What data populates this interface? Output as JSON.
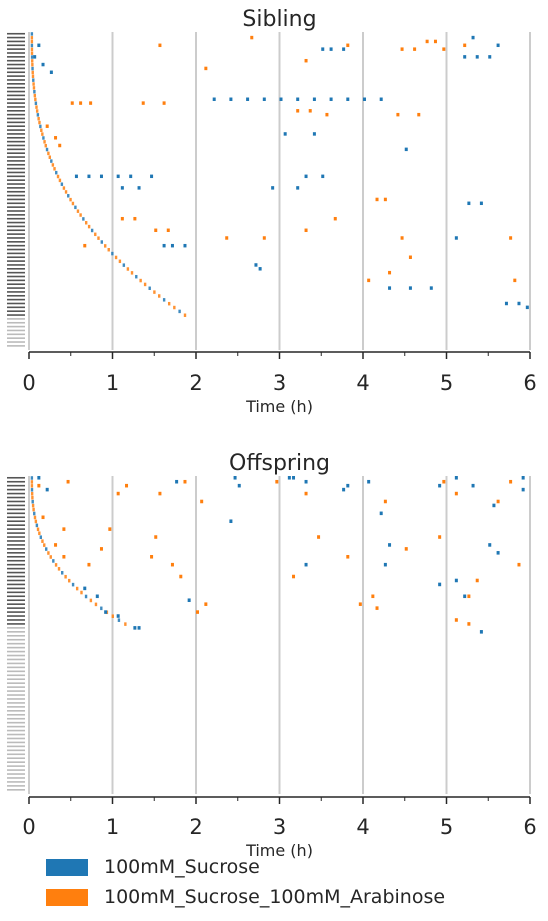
{
  "colors": {
    "sucrose": "#1f77b4",
    "arabinose": "#ff7f0e",
    "gridline": "#cccccc",
    "axis": "#262626"
  },
  "legend": {
    "items": [
      {
        "label": "100mM_Sucrose",
        "color_key": "sucrose"
      },
      {
        "label": "100mM_Sucrose_100mM_Arabinose",
        "color_key": "arabinose"
      }
    ]
  },
  "chart_data": [
    {
      "type": "event-raster",
      "title": "Sibling",
      "xlabel": "Time (h)",
      "xlim": [
        0,
        6
      ],
      "xticks": [
        "0",
        "1",
        "2",
        "3",
        "4",
        "5",
        "6"
      ],
      "vertical_grid_at": [
        0,
        1,
        2,
        3,
        4,
        5,
        6
      ],
      "row_count": 82,
      "active_rows": 74,
      "series": [
        {
          "name": "100mM_Sucrose",
          "color_key": "sucrose",
          "events": [
            {
              "row": 3,
              "t": 0.1
            },
            {
              "row": 6,
              "t": 0.05
            },
            {
              "row": 8,
              "t": 0.15
            },
            {
              "row": 10,
              "t": 0.25
            },
            {
              "row": 4,
              "t": 3.5
            },
            {
              "row": 4,
              "t": 3.6
            },
            {
              "row": 4,
              "t": 3.75
            },
            {
              "row": 6,
              "t": 5.2
            },
            {
              "row": 6,
              "t": 5.35
            },
            {
              "row": 6,
              "t": 5.5
            },
            {
              "row": 1,
              "t": 5.3
            },
            {
              "row": 3,
              "t": 5.6
            },
            {
              "row": 17,
              "t": 2.2
            },
            {
              "row": 17,
              "t": 2.4
            },
            {
              "row": 17,
              "t": 2.6
            },
            {
              "row": 17,
              "t": 2.8
            },
            {
              "row": 17,
              "t": 3.0
            },
            {
              "row": 17,
              "t": 3.2
            },
            {
              "row": 17,
              "t": 3.4
            },
            {
              "row": 17,
              "t": 3.6
            },
            {
              "row": 17,
              "t": 3.8
            },
            {
              "row": 17,
              "t": 4.0
            },
            {
              "row": 17,
              "t": 4.2
            },
            {
              "row": 26,
              "t": 3.05
            },
            {
              "row": 26,
              "t": 3.4
            },
            {
              "row": 30,
              "t": 4.5
            },
            {
              "row": 37,
              "t": 0.55
            },
            {
              "row": 37,
              "t": 0.7
            },
            {
              "row": 37,
              "t": 0.85
            },
            {
              "row": 37,
              "t": 1.05
            },
            {
              "row": 37,
              "t": 1.2
            },
            {
              "row": 37,
              "t": 1.45
            },
            {
              "row": 37,
              "t": 3.3
            },
            {
              "row": 37,
              "t": 3.5
            },
            {
              "row": 40,
              "t": 1.1
            },
            {
              "row": 40,
              "t": 1.3
            },
            {
              "row": 40,
              "t": 2.9
            },
            {
              "row": 40,
              "t": 3.2
            },
            {
              "row": 44,
              "t": 5.25
            },
            {
              "row": 44,
              "t": 5.4
            },
            {
              "row": 53,
              "t": 5.1
            },
            {
              "row": 55,
              "t": 1.6
            },
            {
              "row": 55,
              "t": 1.7
            },
            {
              "row": 55,
              "t": 1.85
            },
            {
              "row": 60,
              "t": 2.7
            },
            {
              "row": 61,
              "t": 2.75
            },
            {
              "row": 66,
              "t": 4.3
            },
            {
              "row": 66,
              "t": 4.55
            },
            {
              "row": 66,
              "t": 4.8
            },
            {
              "row": 70,
              "t": 5.7
            },
            {
              "row": 70,
              "t": 5.85
            },
            {
              "row": 71,
              "t": 5.95
            }
          ]
        },
        {
          "name": "100mM_Sucrose_100mM_Arabinose",
          "color_key": "arabinose",
          "events": [
            {
              "row": 1,
              "t": 2.65
            },
            {
              "row": 2,
              "t": 4.75
            },
            {
              "row": 2,
              "t": 4.85
            },
            {
              "row": 3,
              "t": 1.55
            },
            {
              "row": 3,
              "t": 3.8
            },
            {
              "row": 3,
              "t": 5.2
            },
            {
              "row": 4,
              "t": 4.45
            },
            {
              "row": 4,
              "t": 4.6
            },
            {
              "row": 4,
              "t": 4.95
            },
            {
              "row": 7,
              "t": 3.3
            },
            {
              "row": 9,
              "t": 2.1
            },
            {
              "row": 18,
              "t": 0.5
            },
            {
              "row": 18,
              "t": 0.6
            },
            {
              "row": 18,
              "t": 0.72
            },
            {
              "row": 18,
              "t": 1.35
            },
            {
              "row": 18,
              "t": 1.6
            },
            {
              "row": 20,
              "t": 3.2
            },
            {
              "row": 20,
              "t": 3.35
            },
            {
              "row": 21,
              "t": 3.55
            },
            {
              "row": 21,
              "t": 4.4
            },
            {
              "row": 21,
              "t": 4.65
            },
            {
              "row": 24,
              "t": 0.2
            },
            {
              "row": 27,
              "t": 0.3
            },
            {
              "row": 29,
              "t": 0.35
            },
            {
              "row": 43,
              "t": 4.15
            },
            {
              "row": 43,
              "t": 4.25
            },
            {
              "row": 48,
              "t": 1.1
            },
            {
              "row": 48,
              "t": 1.25
            },
            {
              "row": 48,
              "t": 3.65
            },
            {
              "row": 51,
              "t": 1.5
            },
            {
              "row": 51,
              "t": 1.65
            },
            {
              "row": 51,
              "t": 3.3
            },
            {
              "row": 53,
              "t": 2.35
            },
            {
              "row": 53,
              "t": 2.8
            },
            {
              "row": 53,
              "t": 4.45
            },
            {
              "row": 53,
              "t": 5.75
            },
            {
              "row": 55,
              "t": 0.65
            },
            {
              "row": 58,
              "t": 4.55
            },
            {
              "row": 62,
              "t": 4.3
            },
            {
              "row": 64,
              "t": 4.05
            },
            {
              "row": 64,
              "t": 5.8
            }
          ]
        }
      ]
    },
    {
      "type": "event-raster",
      "title": "Offspring",
      "xlabel": "Time (h)",
      "xlim": [
        0,
        6
      ],
      "xticks": [
        "0",
        "1",
        "2",
        "3",
        "4",
        "5",
        "6"
      ],
      "vertical_grid_at": [
        0,
        1,
        2,
        3,
        4,
        5,
        6
      ],
      "row_count": 80,
      "active_rows": 38,
      "series": [
        {
          "name": "100mM_Sucrose",
          "color_key": "sucrose",
          "events": [
            {
              "row": 0,
              "t": 0.1
            },
            {
              "row": 0,
              "t": 2.45
            },
            {
              "row": 0,
              "t": 3.1
            },
            {
              "row": 0,
              "t": 3.15
            },
            {
              "row": 0,
              "t": 5.1
            },
            {
              "row": 0,
              "t": 5.9
            },
            {
              "row": 1,
              "t": 1.75
            },
            {
              "row": 1,
              "t": 3.3
            },
            {
              "row": 1,
              "t": 4.05
            },
            {
              "row": 2,
              "t": 2.5
            },
            {
              "row": 2,
              "t": 3.8
            },
            {
              "row": 2,
              "t": 4.9
            },
            {
              "row": 2,
              "t": 5.3
            },
            {
              "row": 3,
              "t": 0.2
            },
            {
              "row": 3,
              "t": 3.75
            },
            {
              "row": 3,
              "t": 5.9
            },
            {
              "row": 7,
              "t": 5.55
            },
            {
              "row": 9,
              "t": 4.2
            },
            {
              "row": 11,
              "t": 2.4
            },
            {
              "row": 17,
              "t": 4.3
            },
            {
              "row": 17,
              "t": 5.5
            },
            {
              "row": 19,
              "t": 5.6
            },
            {
              "row": 22,
              "t": 3.3
            },
            {
              "row": 22,
              "t": 4.25
            },
            {
              "row": 26,
              "t": 5.1
            },
            {
              "row": 27,
              "t": 4.9
            },
            {
              "row": 30,
              "t": 5.2
            },
            {
              "row": 28,
              "t": 0.65
            },
            {
              "row": 30,
              "t": 0.8
            },
            {
              "row": 31,
              "t": 1.9
            },
            {
              "row": 34,
              "t": 0.9
            },
            {
              "row": 35,
              "t": 1.05
            },
            {
              "row": 38,
              "t": 1.25
            },
            {
              "row": 38,
              "t": 1.3
            },
            {
              "row": 39,
              "t": 5.4
            }
          ]
        },
        {
          "name": "100mM_Sucrose_100mM_Arabinose",
          "color_key": "arabinose",
          "events": [
            {
              "row": 1,
              "t": 0.45
            },
            {
              "row": 1,
              "t": 1.85
            },
            {
              "row": 1,
              "t": 2.95
            },
            {
              "row": 1,
              "t": 4.95
            },
            {
              "row": 1,
              "t": 5.75
            },
            {
              "row": 2,
              "t": 0.1
            },
            {
              "row": 2,
              "t": 1.15
            },
            {
              "row": 4,
              "t": 1.05
            },
            {
              "row": 4,
              "t": 1.55
            },
            {
              "row": 4,
              "t": 3.3
            },
            {
              "row": 4,
              "t": 5.1
            },
            {
              "row": 6,
              "t": 2.05
            },
            {
              "row": 6,
              "t": 4.25
            },
            {
              "row": 6,
              "t": 5.6
            },
            {
              "row": 10,
              "t": 0.15
            },
            {
              "row": 13,
              "t": 0.4
            },
            {
              "row": 13,
              "t": 0.95
            },
            {
              "row": 15,
              "t": 1.5
            },
            {
              "row": 15,
              "t": 3.45
            },
            {
              "row": 15,
              "t": 4.9
            },
            {
              "row": 17,
              "t": 0.3
            },
            {
              "row": 18,
              "t": 0.85
            },
            {
              "row": 18,
              "t": 4.5
            },
            {
              "row": 20,
              "t": 0.4
            },
            {
              "row": 20,
              "t": 1.45
            },
            {
              "row": 20,
              "t": 3.8
            },
            {
              "row": 22,
              "t": 0.7
            },
            {
              "row": 22,
              "t": 1.7
            },
            {
              "row": 22,
              "t": 5.85
            },
            {
              "row": 25,
              "t": 1.8
            },
            {
              "row": 25,
              "t": 3.15
            },
            {
              "row": 26,
              "t": 5.35
            },
            {
              "row": 30,
              "t": 4.1
            },
            {
              "row": 30,
              "t": 5.25
            },
            {
              "row": 32,
              "t": 2.1
            },
            {
              "row": 32,
              "t": 3.95
            },
            {
              "row": 33,
              "t": 4.15
            },
            {
              "row": 34,
              "t": 2.0
            },
            {
              "row": 36,
              "t": 5.1
            },
            {
              "row": 37,
              "t": 5.25
            }
          ]
        }
      ]
    }
  ]
}
